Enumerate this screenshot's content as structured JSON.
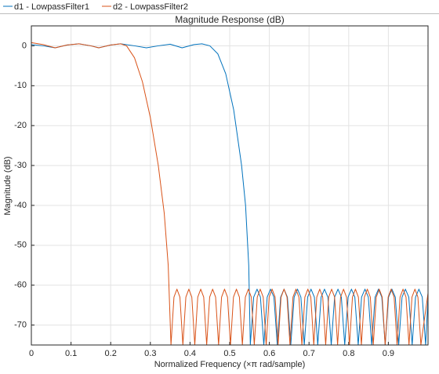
{
  "chart_data": {
    "type": "line",
    "title": "Magnitude Response (dB)",
    "x_label": "Normalized Frequency (×π rad/sample)",
    "y_label": "Magnitude (dB)",
    "xlim": [
      0,
      1
    ],
    "ylim": [
      -75,
      5
    ],
    "xticks": [
      0,
      0.1,
      0.2,
      0.3,
      0.4,
      0.5,
      0.6,
      0.7,
      0.8,
      0.9
    ],
    "yticks": [
      0,
      -10,
      -20,
      -30,
      -40,
      -50,
      -60,
      -70
    ],
    "grid": true,
    "series": [
      {
        "name": "d1 - LowpassFilter1",
        "color": "#0072bd",
        "x": [
          0,
          0.03,
          0.06,
          0.09,
          0.12,
          0.15,
          0.17,
          0.2,
          0.225,
          0.26,
          0.29,
          0.32,
          0.35,
          0.38,
          0.41,
          0.43,
          0.45,
          0.47,
          0.49,
          0.51,
          0.53,
          0.54,
          0.548,
          0.552,
          0.5605,
          0.569,
          0.5775,
          0.586,
          0.5945,
          0.603,
          0.6115,
          0.62,
          0.6285,
          0.637,
          0.6455,
          0.654,
          0.6625,
          0.671,
          0.6795,
          0.688,
          0.6965,
          0.705,
          0.7135,
          0.722,
          0.7305,
          0.739,
          0.7475,
          0.756,
          0.7645,
          0.773,
          0.7815,
          0.79,
          0.7985,
          0.807,
          0.8155,
          0.824,
          0.8325,
          0.841,
          0.8495,
          0.858,
          0.8665,
          0.875,
          0.8835,
          0.892,
          0.9005,
          0.909,
          0.9175,
          0.926,
          0.9345,
          0.943,
          0.9515,
          0.96,
          0.9685,
          0.977,
          0.9855,
          0.994,
          1.0
        ],
        "values": [
          0.3,
          0.0,
          -0.5,
          0.2,
          0.5,
          0.0,
          -0.5,
          0.2,
          0.5,
          0.0,
          -0.5,
          0.0,
          0.4,
          -0.5,
          0.3,
          0.5,
          0.0,
          -2,
          -7,
          -16,
          -30,
          -40,
          -55,
          -75,
          -63,
          -61,
          -63,
          -75,
          -63,
          -61,
          -63,
          -75,
          -63,
          -61,
          -63,
          -75,
          -63,
          -61,
          -63,
          -75,
          -63,
          -61,
          -63,
          -75,
          -63,
          -61,
          -63,
          -75,
          -63,
          -61,
          -63,
          -75,
          -63,
          -61,
          -63,
          -75,
          -63,
          -61,
          -63,
          -75,
          -63,
          -61,
          -63,
          -75,
          -63,
          -61,
          -63,
          -75,
          -63,
          -61,
          -63,
          -75,
          -63,
          -61,
          -63,
          -75,
          -63
        ]
      },
      {
        "name": "d2 - LowpassFilter2",
        "color": "#d95319",
        "x": [
          0,
          0.03,
          0.06,
          0.09,
          0.12,
          0.15,
          0.17,
          0.2,
          0.225,
          0.24,
          0.26,
          0.28,
          0.3,
          0.32,
          0.335,
          0.345,
          0.352,
          0.3595,
          0.367,
          0.3745,
          0.382,
          0.3895,
          0.397,
          0.4045,
          0.412,
          0.4195,
          0.427,
          0.4345,
          0.442,
          0.4495,
          0.457,
          0.4645,
          0.472,
          0.4795,
          0.487,
          0.4945,
          0.502,
          0.5095,
          0.517,
          0.5245,
          0.532,
          0.5395,
          0.547,
          0.5545,
          0.562,
          0.5695,
          0.577,
          0.5845,
          0.592,
          0.5995,
          0.607,
          0.6145,
          0.622,
          0.6295,
          0.637,
          0.6445,
          0.652,
          0.6595,
          0.667,
          0.6745,
          0.682,
          0.6895,
          0.697,
          0.7045,
          0.712,
          0.7195,
          0.727,
          0.7345,
          0.742,
          0.7495,
          0.757,
          0.7645,
          0.772,
          0.7795,
          0.787,
          0.7945,
          0.802,
          0.8095,
          0.817,
          0.8245,
          0.832,
          0.8395,
          0.847,
          0.8545,
          0.862,
          0.8695,
          0.877,
          0.8845,
          0.892,
          0.8995,
          0.907,
          0.9145,
          0.922,
          0.9295,
          0.937,
          0.9445,
          0.952,
          0.9595,
          0.967,
          0.9745,
          0.982,
          1.0
        ],
        "values": [
          0.8,
          0.3,
          -0.5,
          0.2,
          0.5,
          0.0,
          -0.5,
          0.2,
          0.5,
          0.0,
          -3,
          -9,
          -18,
          -30,
          -42,
          -55,
          -75,
          -63,
          -61,
          -63,
          -75,
          -63,
          -61,
          -63,
          -75,
          -63,
          -61,
          -63,
          -75,
          -63,
          -61,
          -63,
          -75,
          -63,
          -61,
          -63,
          -75,
          -63,
          -61,
          -63,
          -75,
          -63,
          -61,
          -63,
          -75,
          -63,
          -61,
          -63,
          -75,
          -63,
          -61,
          -63,
          -75,
          -63,
          -61,
          -63,
          -75,
          -63,
          -61,
          -63,
          -75,
          -63,
          -61,
          -63,
          -75,
          -63,
          -61,
          -63,
          -75,
          -63,
          -61,
          -63,
          -75,
          -63,
          -61,
          -63,
          -75,
          -63,
          -61,
          -63,
          -75,
          -63,
          -61,
          -63,
          -75,
          -63,
          -61,
          -63,
          -75,
          -63,
          -61,
          -63,
          -75,
          -63,
          -61,
          -63,
          -75,
          -63,
          -61,
          -63,
          -75,
          -62
        ]
      }
    ]
  }
}
